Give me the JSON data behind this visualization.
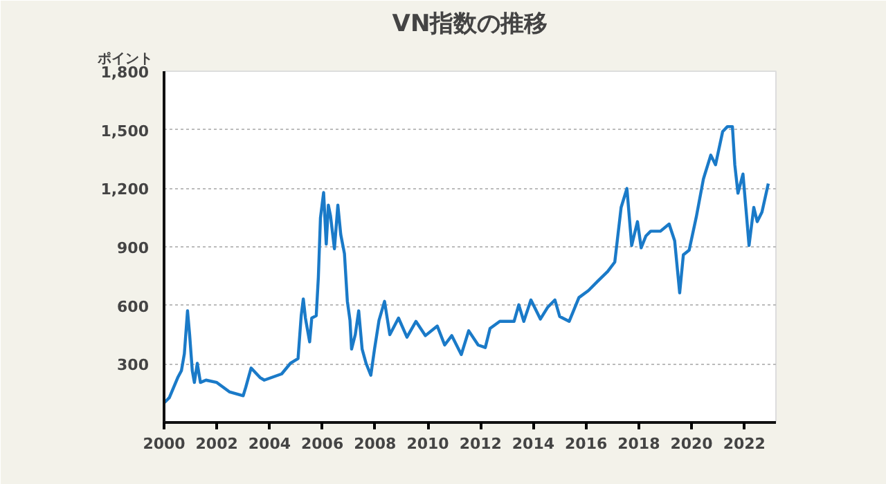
{
  "chart_data": {
    "type": "line",
    "title": "VN指数の推移",
    "ylabel": "ポイント",
    "x": [
      2000.0,
      2000.2,
      2000.52,
      2000.66,
      2000.77,
      2000.89,
      2000.97,
      2001.07,
      2001.15,
      2001.26,
      2001.38,
      2001.59,
      2002.0,
      2002.49,
      2003.0,
      2003.1,
      2003.3,
      2003.64,
      2003.8,
      2004.46,
      2004.79,
      2005.08,
      2005.2,
      2005.28,
      2005.36,
      2005.52,
      2005.6,
      2005.77,
      2005.85,
      2005.93,
      2006.05,
      2006.15,
      2006.23,
      2006.31,
      2006.46,
      2006.59,
      2006.7,
      2006.84,
      2006.95,
      2007.05,
      2007.11,
      2007.25,
      2007.38,
      2007.51,
      2007.66,
      2007.84,
      2007.98,
      2008.15,
      2008.36,
      2008.56,
      2008.89,
      2009.21,
      2009.55,
      2009.91,
      2010.36,
      2010.64,
      2010.91,
      2011.27,
      2011.55,
      2011.91,
      2012.18,
      2012.36,
      2012.73,
      2013.27,
      2013.45,
      2013.64,
      2013.91,
      2014.27,
      2014.55,
      2014.82,
      2015.0,
      2015.36,
      2015.73,
      2016.09,
      2016.45,
      2016.82,
      2017.09,
      2017.33,
      2017.55,
      2017.73,
      2017.95,
      2018.09,
      2018.27,
      2018.45,
      2018.82,
      2019.15,
      2019.36,
      2019.55,
      2019.69,
      2019.91,
      2020.18,
      2020.45,
      2020.73,
      2020.91,
      2021.18,
      2021.36,
      2021.55,
      2021.64,
      2021.76,
      2021.95,
      2022.09,
      2022.18,
      2022.36,
      2022.49,
      2022.67,
      2022.91
    ],
    "series": [
      {
        "color": "#1a7ac8",
        "values": [
          100,
          127,
          230,
          266,
          352,
          572,
          450,
          266,
          205,
          303,
          205,
          217,
          205,
          156,
          137,
          181,
          279,
          230,
          217,
          249,
          303,
          327,
          547,
          633,
          535,
          413,
          535,
          547,
          743,
          1048,
          1178,
          914,
          1114,
          1060,
          890,
          1114,
          963,
          865,
          621,
          523,
          376,
          450,
          572,
          376,
          303,
          242,
          376,
          523,
          621,
          450,
          535,
          437,
          518,
          445,
          494,
          397,
          445,
          348,
          470,
          397,
          384,
          482,
          518,
          518,
          603,
          518,
          628,
          530,
          591,
          628,
          543,
          518,
          640,
          676,
          725,
          774,
          822,
          1102,
          1199,
          907,
          1029,
          895,
          956,
          980,
          980,
          1017,
          931,
          664,
          859,
          883,
          1053,
          1248,
          1370,
          1321,
          1491,
          1516,
          1516,
          1321,
          1175,
          1273,
          1053,
          907,
          1102,
          1029,
          1078,
          1224
        ]
      }
    ],
    "xlim": [
      2000,
      2023.2
    ],
    "xticks": [
      2000,
      2002,
      2004,
      2006,
      2008,
      2010,
      2012,
      2014,
      2016,
      2018,
      2020,
      2022
    ],
    "ylim": [
      0,
      1800
    ],
    "yticks": [
      300,
      600,
      900,
      {
        "value": 1200,
        "label": "1,200"
      },
      {
        "value": 1500,
        "label": "1,500"
      },
      {
        "value": 1800,
        "label": "1,800"
      }
    ],
    "grid": "y",
    "line_style": "solid"
  }
}
